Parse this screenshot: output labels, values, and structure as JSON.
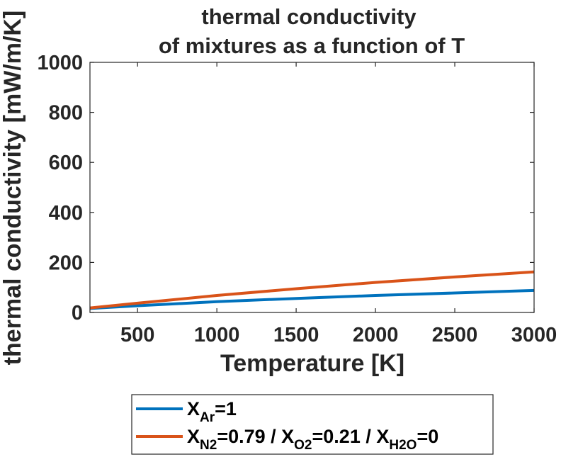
{
  "chart_data": {
    "type": "line",
    "title_lines": [
      "thermal conductivity",
      "of mixtures as a function of T"
    ],
    "xlabel": "Temperature [K]",
    "ylabel": "thermal conductivity [mW/m/K]",
    "xlim": [
      200,
      3000
    ],
    "ylim": [
      0,
      1000
    ],
    "xticks": [
      500,
      1000,
      1500,
      2000,
      2500,
      3000
    ],
    "yticks": [
      0,
      200,
      400,
      600,
      800,
      1000
    ],
    "grid": false,
    "legend_position": "bottom-outside",
    "series": [
      {
        "color": "#0072BD",
        "legend": {
          "parts": [
            {
              "t": "X"
            },
            {
              "t": "Ar",
              "sub": true
            },
            {
              "t": "=1"
            }
          ]
        },
        "x": [
          200,
          500,
          1000,
          1500,
          2000,
          2500,
          3000
        ],
        "y": [
          16,
          27,
          43,
          56,
          68,
          78,
          88
        ]
      },
      {
        "color": "#D95319",
        "legend": {
          "parts": [
            {
              "t": "X"
            },
            {
              "t": "N2",
              "sub": true
            },
            {
              "t": "=0.79 / X"
            },
            {
              "t": "O2",
              "sub": true
            },
            {
              "t": "=0.21 / X"
            },
            {
              "t": "H2O",
              "sub": true
            },
            {
              "t": "=0"
            }
          ]
        },
        "x": [
          200,
          500,
          1000,
          1500,
          2000,
          2500,
          3000
        ],
        "y": [
          18,
          37,
          68,
          95,
          120,
          142,
          162
        ]
      }
    ]
  }
}
